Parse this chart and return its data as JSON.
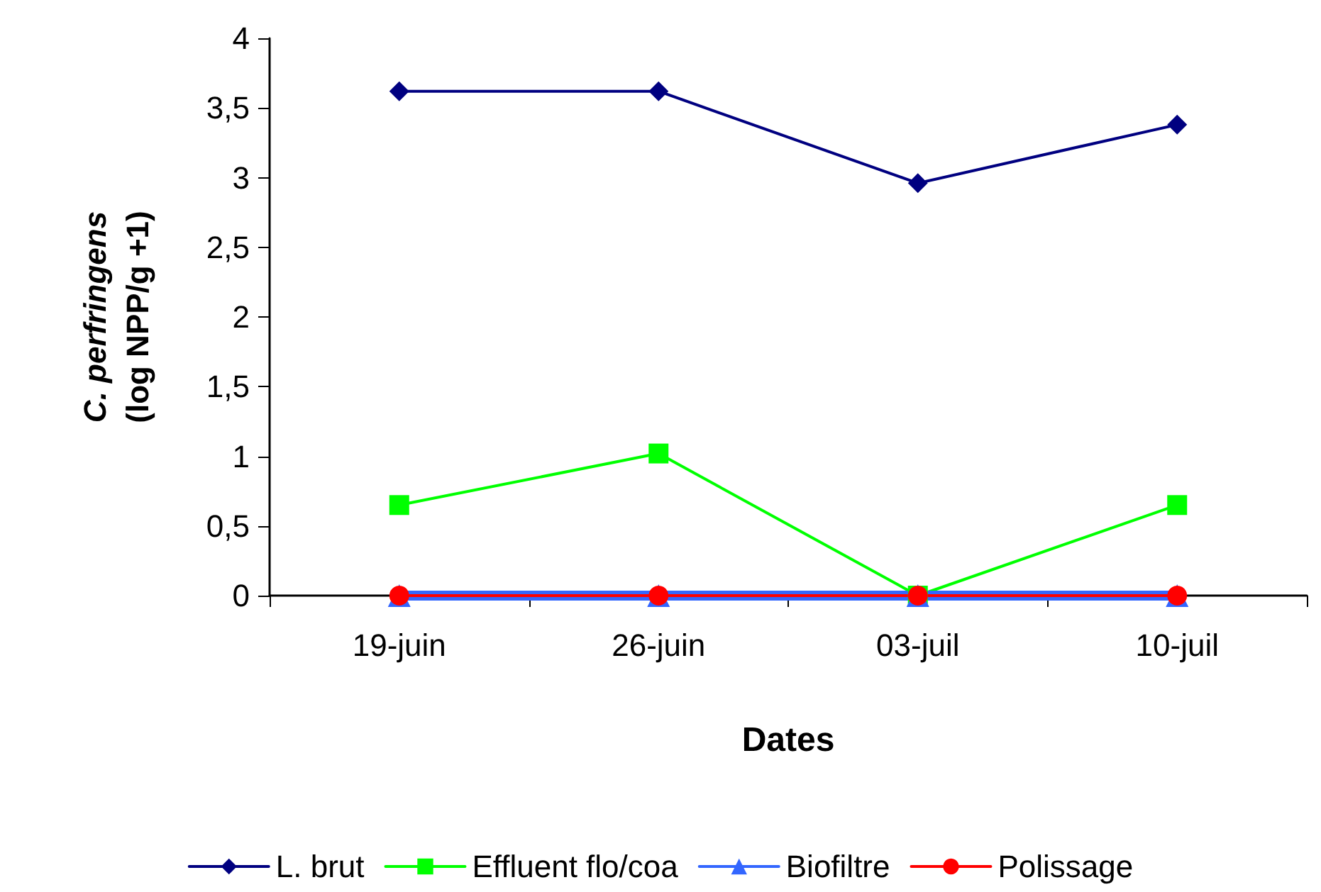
{
  "chart_data": {
    "type": "line",
    "xlabel": "Dates",
    "ylabel": "C. perfringens\n(log NPP/g +1)",
    "categories": [
      "19-juin",
      "26-juin",
      "03-juil",
      "10-juil"
    ],
    "series": [
      {
        "name": "L. brut",
        "color": "#000080",
        "marker": "diamond",
        "values": [
          3.62,
          3.62,
          2.96,
          3.38
        ]
      },
      {
        "name": "Effluent flo/coa",
        "color": "#00ff00",
        "marker": "square",
        "values": [
          0.65,
          1.02,
          0,
          0.65
        ]
      },
      {
        "name": "Biofiltre",
        "color": "#3366ff",
        "marker": "triangle",
        "values": [
          0,
          0,
          0,
          0
        ]
      },
      {
        "name": "Polissage",
        "color": "#ff0000",
        "marker": "circle",
        "values": [
          0,
          0,
          0,
          0
        ]
      }
    ],
    "ylim": [
      0,
      4
    ],
    "yticks": [
      {
        "value": 0,
        "label": "0"
      },
      {
        "value": 0.5,
        "label": "0,5"
      },
      {
        "value": 1,
        "label": "1"
      },
      {
        "value": 1.5,
        "label": "1,5"
      },
      {
        "value": 2,
        "label": "2"
      },
      {
        "value": 2.5,
        "label": "2,5"
      },
      {
        "value": 3,
        "label": "3"
      },
      {
        "value": 3.5,
        "label": "3,5"
      },
      {
        "value": 4,
        "label": "4"
      }
    ],
    "grid": false,
    "legend": "bottom",
    "line_style": "solid"
  }
}
